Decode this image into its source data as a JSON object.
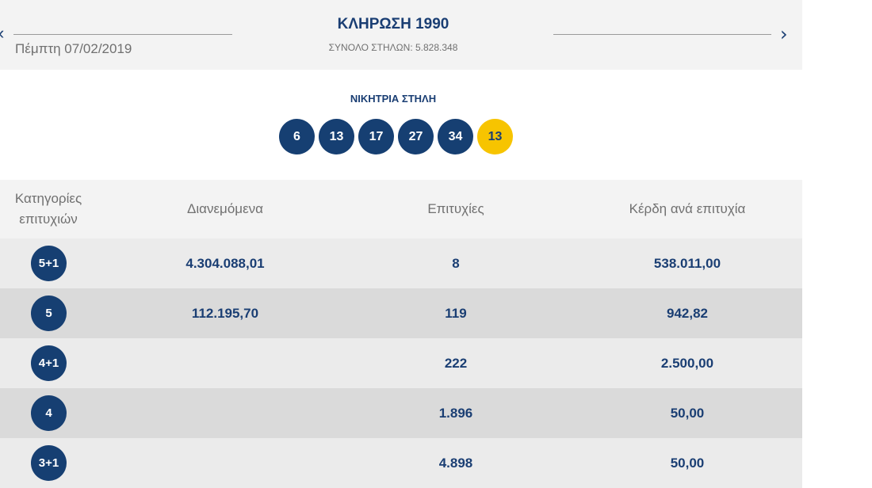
{
  "header": {
    "prev_arrow": "‹",
    "next_arrow": "›",
    "date": "Πέμπτη 07/02/2019",
    "title": "ΚΛΗΡΩΣΗ 1990",
    "total_columns": "ΣΥΝΟΛΟ ΣΤΗΛΩΝ: 5.828.348"
  },
  "winning": {
    "label": "ΝΙΚΗΤΡΙΑ ΣΤΗΛΗ",
    "numbers": [
      "6",
      "13",
      "17",
      "27",
      "34"
    ],
    "joker": "13"
  },
  "colors": {
    "primary": "#163f72",
    "joker": "#f7c400",
    "header_bg": "#f3f3f3",
    "row_odd": "#ebebeb",
    "row_even": "#dadada"
  },
  "table": {
    "headers": {
      "category_line1": "Κατηγορίες",
      "category_line2": "επιτυχιών",
      "distributed": "Διανεμόμενα",
      "winners": "Επιτυχίες",
      "prize_per_winner": "Κέρδη ανά επιτυχία"
    },
    "rows": [
      {
        "category": "5+1",
        "distributed": "4.304.088,01",
        "winners": "8",
        "prize": "538.011,00"
      },
      {
        "category": "5",
        "distributed": "112.195,70",
        "winners": "119",
        "prize": "942,82"
      },
      {
        "category": "4+1",
        "distributed": "",
        "winners": "222",
        "prize": "2.500,00"
      },
      {
        "category": "4",
        "distributed": "",
        "winners": "1.896",
        "prize": "50,00"
      },
      {
        "category": "3+1",
        "distributed": "",
        "winners": "4.898",
        "prize": "50,00"
      }
    ]
  }
}
